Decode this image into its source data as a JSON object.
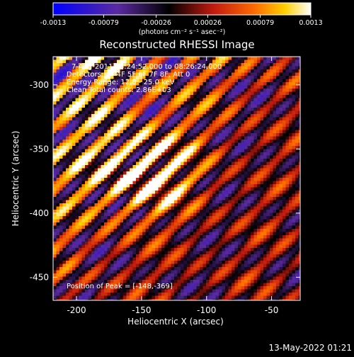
{
  "chart_data": {
    "type": "heatmap",
    "title": "Reconstructed RHESSI Image",
    "xlabel": "Heliocentric X (arcsec)",
    "ylabel": "Heliocentric Y (arcsec)",
    "xlim": [
      -218,
      -28
    ],
    "ylim": [
      -468,
      -278
    ],
    "x_ticks": [
      -200,
      -150,
      -100,
      -50
    ],
    "y_ticks": [
      -300,
      -350,
      -400,
      -450
    ],
    "colormap": {
      "name": "blue-purple-red-yellow-white",
      "stops": [
        "#0000ff",
        "#5a2aa0",
        "#000000",
        "#c01a10",
        "#ff6a00",
        "#ffd000",
        "#ffffff"
      ]
    },
    "colorbar": {
      "range": [
        -0.0013,
        0.0013
      ],
      "tick_labels": [
        "-0.0013",
        "-0.00079",
        "-0.00026",
        "0.00026",
        "0.00079",
        "0.0013"
      ],
      "unit_label": "(photons cm⁻² s⁻¹ asec⁻²)"
    },
    "annotations": {
      "time_range": "7-Aug-2011 08:24:52.000 to 08:26:24.000",
      "detectors": "Detectors: 3F 4F 5F 6F 7F 8F, Att 0",
      "energy": "Energy Range: 12.0 - 25.0 keV",
      "clean": "Clean     Total counts: 2.86E+03",
      "peak": "Position of Peak = [-148,-369]"
    },
    "peak_position": [
      -148,
      -369
    ]
  },
  "footer": {
    "timestamp": "13-May-2022 01:21"
  }
}
